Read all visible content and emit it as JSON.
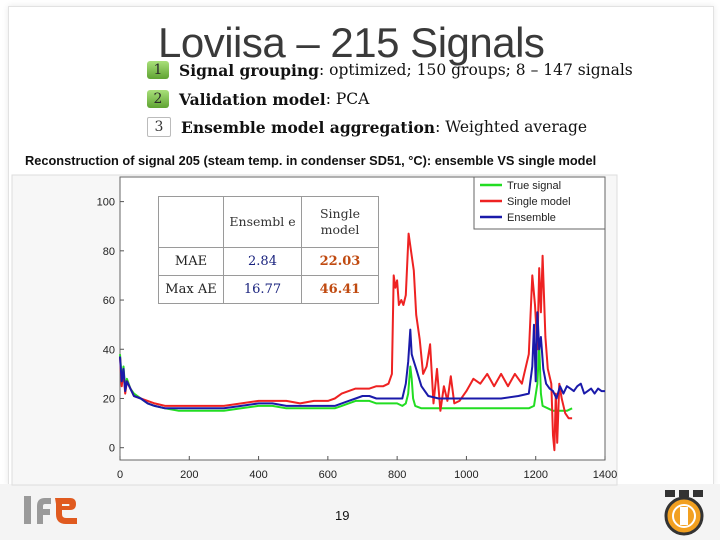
{
  "slide": {
    "title": "Loviisa – 215 Signals",
    "bullets": [
      {
        "num": "1",
        "strong": "Signal grouping",
        "rest": ": optimized; 150 groups; 8 – 147 signals"
      },
      {
        "num": "2",
        "strong": "Validation model",
        "rest": ": PCA"
      },
      {
        "num": "3",
        "strong": "Ensemble model aggregation",
        "rest": ": Weighted average"
      }
    ],
    "page_number": "19",
    "logo_text": "IFE"
  },
  "error_table": {
    "col_headers": [
      "Ensembl e",
      "Single model"
    ],
    "rows": [
      {
        "label": "MAE",
        "ensemble": "2.84",
        "single": "22.03"
      },
      {
        "label": "Max AE",
        "ensemble": "16.77",
        "single": "46.41"
      }
    ]
  },
  "chart_data": {
    "type": "line",
    "title": "Reconstruction of signal 205 (steam temp. in condenser SD51, °C): ensemble VS single model",
    "xlabel": "",
    "ylabel": "",
    "xlim": [
      0,
      1400
    ],
    "ylim": [
      -5,
      110
    ],
    "x_ticks": [
      0,
      200,
      400,
      600,
      800,
      1000,
      1200,
      1400
    ],
    "y_ticks": [
      0,
      20,
      40,
      60,
      80,
      100
    ],
    "grid": false,
    "legend_position": "top-right",
    "series": [
      {
        "name": "True signal",
        "color": "#22dd22",
        "points": [
          [
            0,
            38
          ],
          [
            5,
            28
          ],
          [
            10,
            33
          ],
          [
            15,
            24
          ],
          [
            20,
            28
          ],
          [
            30,
            24
          ],
          [
            40,
            22
          ],
          [
            60,
            20
          ],
          [
            80,
            18
          ],
          [
            100,
            17
          ],
          [
            130,
            16
          ],
          [
            170,
            15
          ],
          [
            200,
            15
          ],
          [
            250,
            15
          ],
          [
            300,
            15
          ],
          [
            350,
            16
          ],
          [
            400,
            17
          ],
          [
            440,
            17
          ],
          [
            480,
            16
          ],
          [
            520,
            16
          ],
          [
            560,
            16
          ],
          [
            600,
            16
          ],
          [
            620,
            16
          ],
          [
            640,
            17
          ],
          [
            660,
            18
          ],
          [
            680,
            19
          ],
          [
            700,
            19
          ],
          [
            720,
            19
          ],
          [
            740,
            18
          ],
          [
            760,
            18
          ],
          [
            780,
            18
          ],
          [
            800,
            18
          ],
          [
            815,
            17
          ],
          [
            825,
            18
          ],
          [
            832,
            22
          ],
          [
            838,
            33
          ],
          [
            842,
            28
          ],
          [
            846,
            20
          ],
          [
            852,
            17
          ],
          [
            870,
            16
          ],
          [
            900,
            16
          ],
          [
            950,
            16
          ],
          [
            1000,
            16
          ],
          [
            1050,
            16
          ],
          [
            1100,
            16
          ],
          [
            1150,
            16
          ],
          [
            1180,
            16
          ],
          [
            1195,
            17
          ],
          [
            1205,
            26
          ],
          [
            1210,
            42
          ],
          [
            1215,
            22
          ],
          [
            1220,
            17
          ],
          [
            1235,
            16
          ],
          [
            1250,
            15
          ],
          [
            1270,
            15
          ],
          [
            1290,
            15
          ],
          [
            1305,
            16
          ]
        ]
      },
      {
        "name": "Single model",
        "color": "#ee2222",
        "points": [
          [
            0,
            37
          ],
          [
            5,
            25
          ],
          [
            10,
            31
          ],
          [
            15,
            22
          ],
          [
            20,
            27
          ],
          [
            30,
            24
          ],
          [
            40,
            21
          ],
          [
            60,
            20
          ],
          [
            80,
            19
          ],
          [
            100,
            18
          ],
          [
            130,
            17
          ],
          [
            170,
            17
          ],
          [
            200,
            17
          ],
          [
            250,
            17
          ],
          [
            300,
            17
          ],
          [
            350,
            18
          ],
          [
            400,
            19
          ],
          [
            440,
            19
          ],
          [
            480,
            19
          ],
          [
            520,
            18
          ],
          [
            560,
            19
          ],
          [
            600,
            19
          ],
          [
            620,
            20
          ],
          [
            640,
            22
          ],
          [
            660,
            23
          ],
          [
            680,
            24
          ],
          [
            700,
            24
          ],
          [
            720,
            24
          ],
          [
            740,
            25
          ],
          [
            760,
            25
          ],
          [
            775,
            26
          ],
          [
            785,
            30
          ],
          [
            790,
            70
          ],
          [
            795,
            65
          ],
          [
            800,
            68
          ],
          [
            805,
            58
          ],
          [
            812,
            60
          ],
          [
            818,
            58
          ],
          [
            825,
            62
          ],
          [
            833,
            87
          ],
          [
            840,
            80
          ],
          [
            848,
            72
          ],
          [
            855,
            54
          ],
          [
            865,
            44
          ],
          [
            875,
            30
          ],
          [
            885,
            33
          ],
          [
            895,
            42
          ],
          [
            905,
            18
          ],
          [
            915,
            32
          ],
          [
            925,
            15
          ],
          [
            935,
            25
          ],
          [
            945,
            19
          ],
          [
            955,
            29
          ],
          [
            965,
            18
          ],
          [
            980,
            19
          ],
          [
            1000,
            23
          ],
          [
            1020,
            28
          ],
          [
            1040,
            26
          ],
          [
            1060,
            30
          ],
          [
            1080,
            25
          ],
          [
            1100,
            30
          ],
          [
            1120,
            25
          ],
          [
            1140,
            30
          ],
          [
            1160,
            26
          ],
          [
            1180,
            38
          ],
          [
            1190,
            70
          ],
          [
            1198,
            58
          ],
          [
            1205,
            40
          ],
          [
            1210,
            73
          ],
          [
            1215,
            55
          ],
          [
            1220,
            78
          ],
          [
            1228,
            45
          ],
          [
            1235,
            32
          ],
          [
            1245,
            26
          ],
          [
            1250,
            5
          ],
          [
            1254,
            -1
          ],
          [
            1258,
            22
          ],
          [
            1262,
            2
          ],
          [
            1268,
            26
          ],
          [
            1275,
            20
          ],
          [
            1285,
            14
          ],
          [
            1295,
            12
          ],
          [
            1305,
            12
          ]
        ]
      },
      {
        "name": "Ensemble",
        "color": "#1a1aaa",
        "points": [
          [
            0,
            37
          ],
          [
            5,
            27
          ],
          [
            10,
            32
          ],
          [
            15,
            23
          ],
          [
            20,
            27
          ],
          [
            30,
            24
          ],
          [
            40,
            21
          ],
          [
            60,
            20
          ],
          [
            80,
            18
          ],
          [
            100,
            17
          ],
          [
            130,
            16
          ],
          [
            170,
            16
          ],
          [
            200,
            16
          ],
          [
            250,
            16
          ],
          [
            300,
            16
          ],
          [
            350,
            17
          ],
          [
            400,
            18
          ],
          [
            440,
            18
          ],
          [
            480,
            17
          ],
          [
            520,
            17
          ],
          [
            560,
            17
          ],
          [
            600,
            17
          ],
          [
            620,
            17
          ],
          [
            640,
            18
          ],
          [
            660,
            19
          ],
          [
            680,
            20
          ],
          [
            700,
            21
          ],
          [
            720,
            21
          ],
          [
            740,
            20
          ],
          [
            760,
            20
          ],
          [
            780,
            20
          ],
          [
            800,
            20
          ],
          [
            815,
            20
          ],
          [
            825,
            26
          ],
          [
            832,
            35
          ],
          [
            838,
            48
          ],
          [
            842,
            38
          ],
          [
            846,
            36
          ],
          [
            855,
            32
          ],
          [
            870,
            25
          ],
          [
            890,
            21
          ],
          [
            920,
            20
          ],
          [
            950,
            20
          ],
          [
            1000,
            20
          ],
          [
            1050,
            20
          ],
          [
            1100,
            20
          ],
          [
            1150,
            21
          ],
          [
            1180,
            22
          ],
          [
            1190,
            33
          ],
          [
            1195,
            50
          ],
          [
            1200,
            27
          ],
          [
            1205,
            55
          ],
          [
            1210,
            40
          ],
          [
            1215,
            45
          ],
          [
            1222,
            32
          ],
          [
            1230,
            26
          ],
          [
            1240,
            24
          ],
          [
            1250,
            23
          ],
          [
            1260,
            20
          ],
          [
            1270,
            25
          ],
          [
            1280,
            22
          ],
          [
            1290,
            25
          ],
          [
            1300,
            24
          ],
          [
            1310,
            23
          ],
          [
            1320,
            25
          ],
          [
            1330,
            26
          ],
          [
            1340,
            22
          ],
          [
            1350,
            23
          ],
          [
            1360,
            24
          ],
          [
            1370,
            22
          ],
          [
            1380,
            24
          ],
          [
            1390,
            23
          ],
          [
            1400,
            23
          ]
        ]
      }
    ]
  }
}
